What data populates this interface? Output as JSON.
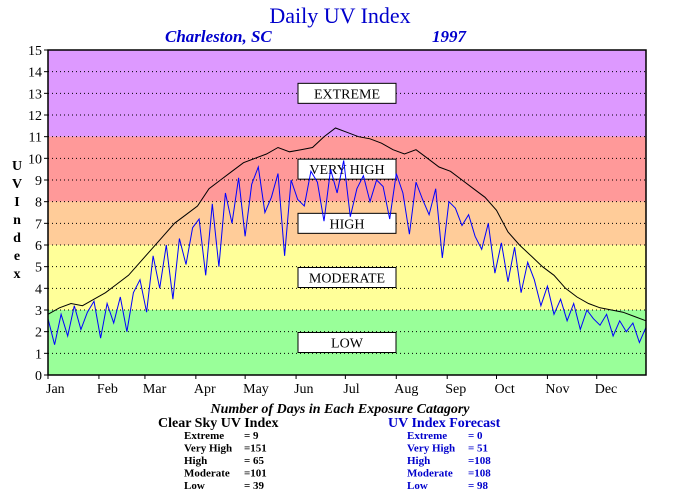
{
  "chart_data": {
    "type": "line",
    "title": "Daily UV Index",
    "location": "Charleston, SC",
    "year": "1997",
    "ylabel": "UV Index",
    "ylim": [
      0,
      15
    ],
    "y_ticks": [
      "0",
      "1",
      "2",
      "3",
      "4",
      "5",
      "6",
      "7",
      "8",
      "9",
      "10",
      "11",
      "12",
      "13",
      "14",
      "15"
    ],
    "xlim": [
      1,
      365
    ],
    "x_ticks": [
      {
        "label": "Jan",
        "day": 1
      },
      {
        "label": "Feb",
        "day": 32
      },
      {
        "label": "Mar",
        "day": 60
      },
      {
        "label": "Apr",
        "day": 91
      },
      {
        "label": "May",
        "day": 121
      },
      {
        "label": "Jun",
        "day": 152
      },
      {
        "label": "Jul",
        "day": 182
      },
      {
        "label": "Aug",
        "day": 213
      },
      {
        "label": "Sep",
        "day": 244
      },
      {
        "label": "Oct",
        "day": 274
      },
      {
        "label": "Nov",
        "day": 305
      },
      {
        "label": "Dec",
        "day": 335
      }
    ],
    "grid": true,
    "categories": [
      {
        "label": "EXTREME",
        "from": 11,
        "to": 15,
        "color": "#dd99ff"
      },
      {
        "label": "VERY HIGH",
        "from": 8,
        "to": 11,
        "color": "#ff9999"
      },
      {
        "label": "HIGH",
        "from": 6,
        "to": 8,
        "color": "#ffcc99"
      },
      {
        "label": "MODERATE",
        "from": 3,
        "to": 6,
        "color": "#ffff99"
      },
      {
        "label": "LOW",
        "from": 0,
        "to": 3,
        "color": "#99ff99"
      }
    ],
    "series": [
      {
        "name": "Clear Sky UV Index",
        "color": "#000000",
        "x": [
          1,
          8,
          15,
          22,
          29,
          36,
          43,
          50,
          57,
          64,
          71,
          78,
          85,
          92,
          99,
          106,
          113,
          120,
          127,
          134,
          141,
          148,
          155,
          162,
          169,
          176,
          183,
          190,
          197,
          204,
          211,
          218,
          225,
          232,
          239,
          246,
          253,
          260,
          267,
          274,
          281,
          288,
          295,
          302,
          309,
          316,
          323,
          330,
          337,
          344,
          351,
          358,
          365
        ],
        "y": [
          2.8,
          3.1,
          3.3,
          3.2,
          3.5,
          3.8,
          4.2,
          4.6,
          5.2,
          5.8,
          6.4,
          7.0,
          7.4,
          7.8,
          8.6,
          9.0,
          9.4,
          9.8,
          10.0,
          10.2,
          10.5,
          10.3,
          10.4,
          10.5,
          11.0,
          11.4,
          11.2,
          11.0,
          10.9,
          10.7,
          10.4,
          10.2,
          10.4,
          10.0,
          9.6,
          9.4,
          9.0,
          8.6,
          8.2,
          7.6,
          6.6,
          6.0,
          5.5,
          5.0,
          4.6,
          4.0,
          3.6,
          3.3,
          3.1,
          3.0,
          2.9,
          2.7,
          2.5
        ]
      },
      {
        "name": "UV Index Forecast",
        "color": "#0000ff",
        "x": [
          1,
          5,
          9,
          13,
          17,
          21,
          25,
          29,
          33,
          37,
          41,
          45,
          49,
          53,
          57,
          61,
          65,
          69,
          73,
          77,
          81,
          85,
          89,
          93,
          97,
          101,
          105,
          109,
          113,
          117,
          121,
          125,
          129,
          133,
          137,
          141,
          145,
          149,
          153,
          157,
          161,
          165,
          169,
          173,
          177,
          181,
          185,
          189,
          193,
          197,
          201,
          205,
          209,
          213,
          217,
          221,
          225,
          229,
          233,
          237,
          241,
          245,
          249,
          253,
          257,
          261,
          265,
          269,
          273,
          277,
          281,
          285,
          289,
          293,
          297,
          301,
          305,
          309,
          313,
          317,
          321,
          325,
          329,
          333,
          337,
          341,
          345,
          349,
          353,
          357,
          361,
          365
        ],
        "y": [
          2.6,
          1.4,
          2.8,
          1.8,
          3.2,
          2.1,
          2.9,
          3.4,
          1.7,
          3.3,
          2.4,
          3.6,
          2.0,
          3.8,
          4.4,
          2.9,
          5.5,
          4.0,
          6.0,
          3.5,
          6.3,
          5.1,
          6.8,
          7.2,
          4.6,
          7.9,
          5.0,
          8.4,
          7.0,
          9.1,
          6.4,
          8.8,
          9.6,
          7.5,
          8.2,
          9.3,
          5.5,
          9.0,
          8.1,
          7.8,
          9.4,
          8.9,
          7.1,
          9.5,
          8.4,
          9.9,
          7.3,
          8.6,
          9.2,
          8.0,
          9.0,
          8.7,
          7.2,
          9.3,
          8.4,
          6.5,
          8.9,
          8.1,
          7.4,
          8.6,
          5.4,
          8.0,
          7.7,
          6.9,
          7.4,
          6.4,
          5.8,
          7.0,
          4.7,
          6.1,
          4.3,
          5.9,
          3.8,
          5.2,
          4.4,
          3.2,
          4.1,
          2.8,
          3.5,
          2.5,
          3.3,
          2.1,
          3.0,
          2.6,
          2.3,
          2.8,
          1.8,
          2.5,
          2.0,
          2.4,
          1.5,
          2.2
        ]
      }
    ],
    "caption": "Number of Days in Each Exposure Catagory",
    "stats": [
      {
        "title": "Clear Sky UV Index",
        "color": "#000000",
        "rows": [
          {
            "label": "Extreme",
            "value": "=    9"
          },
          {
            "label": "Very High",
            "value": "=151"
          },
          {
            "label": "High",
            "value": "=  65"
          },
          {
            "label": "Moderate",
            "value": "=101"
          },
          {
            "label": "Low",
            "value": "=  39"
          }
        ]
      },
      {
        "title": "UV Index Forecast",
        "color": "#0000cc",
        "rows": [
          {
            "label": "Extreme",
            "value": "=    0"
          },
          {
            "label": "Very High",
            "value": "=  51"
          },
          {
            "label": "High",
            "value": "=108"
          },
          {
            "label": "Moderate",
            "value": "=108"
          },
          {
            "label": "Low",
            "value": "=  98"
          }
        ]
      }
    ]
  }
}
